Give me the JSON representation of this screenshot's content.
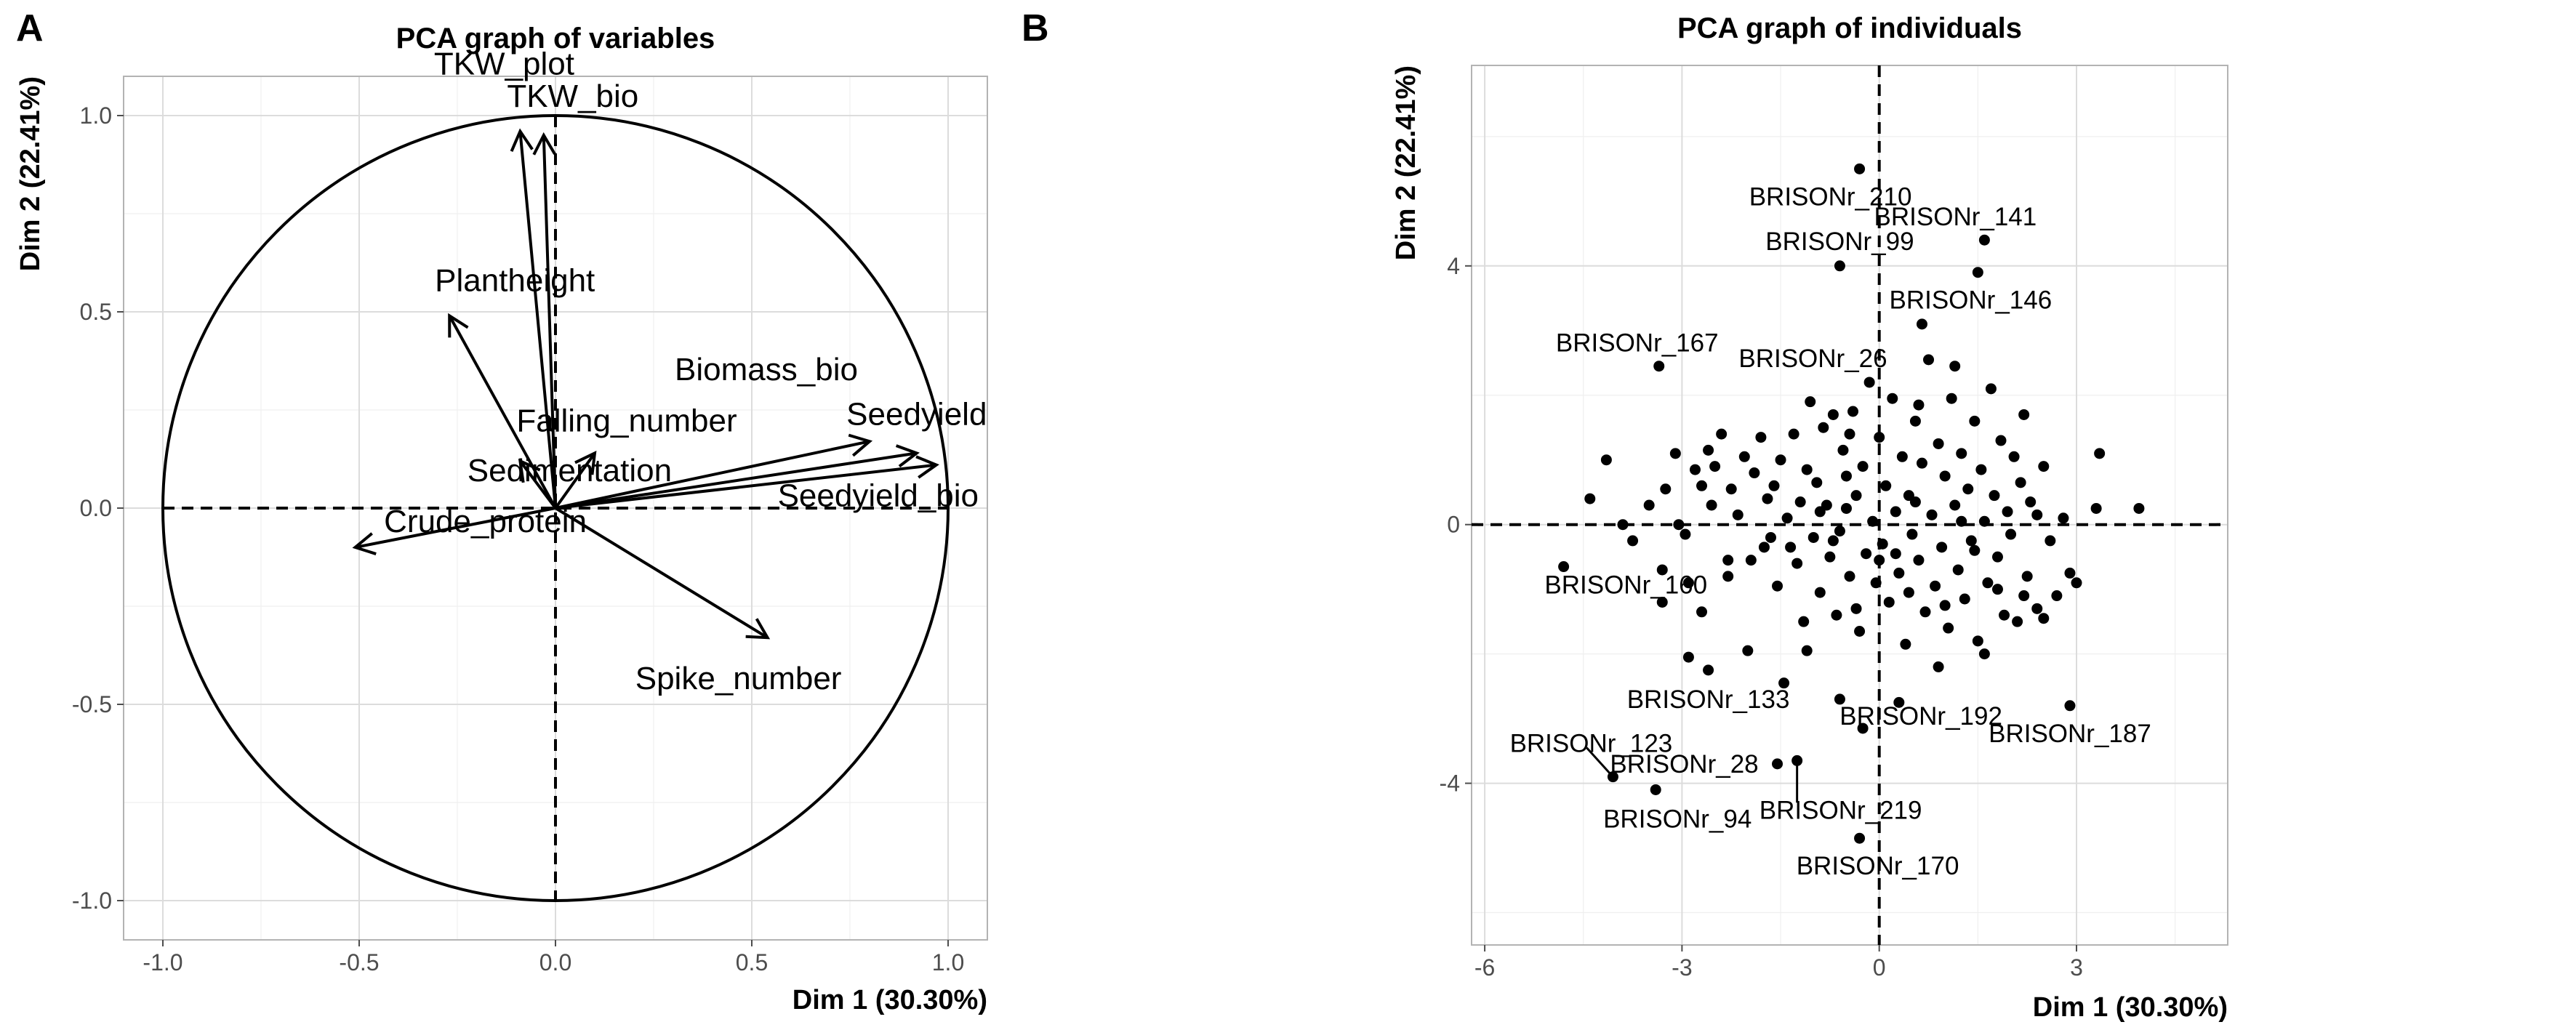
{
  "chart_data": [
    {
      "panel": "A",
      "type": "scatter",
      "title": "PCA graph of variables",
      "xlabel": "Dim 1 (30.30%)",
      "ylabel": "Dim 2 (22.41%)",
      "xlim": [
        -1.1,
        1.1
      ],
      "ylim": [
        -1.1,
        1.1
      ],
      "x_ticks": [
        -1.0,
        -0.5,
        0.0,
        0.5,
        1.0
      ],
      "y_ticks": [
        -1.0,
        -0.5,
        0.0,
        0.5,
        1.0
      ],
      "x_tick_labels": [
        "-1.0",
        "-0.5",
        "0.0",
        "0.5",
        "1.0"
      ],
      "y_tick_labels": [
        "-1.0",
        "-0.5",
        "0.0",
        "0.5",
        "1.0"
      ],
      "correlation_circle": true,
      "grid": true,
      "variables": [
        {
          "name": "TKW_plot",
          "x": -0.09,
          "y": 0.96
        },
        {
          "name": "TKW_bio",
          "x": -0.03,
          "y": 0.95
        },
        {
          "name": "Plantheight",
          "x": -0.27,
          "y": 0.49
        },
        {
          "name": "Biomass_bio",
          "x": 0.8,
          "y": 0.17
        },
        {
          "name": "Seedyield",
          "x": 0.92,
          "y": 0.14
        },
        {
          "name": "Falling_number",
          "x": 0.1,
          "y": 0.14
        },
        {
          "name": "Sedimentation",
          "x": -0.09,
          "y": 0.12
        },
        {
          "name": "Seedyield_bio",
          "x": 0.97,
          "y": 0.11
        },
        {
          "name": "Crude_protein",
          "x": -0.51,
          "y": -0.1
        },
        {
          "name": "Spike_number",
          "x": 0.54,
          "y": -0.33
        }
      ]
    },
    {
      "panel": "B",
      "type": "scatter",
      "title": "PCA graph of individuals",
      "xlabel": "Dim 1 (30.30%)",
      "ylabel": "Dim 2 (22.41%)",
      "xlim": [
        -6.2,
        5.3
      ],
      "ylim": [
        -6.5,
        7.1
      ],
      "x_ticks": [
        -6,
        -3,
        0,
        3
      ],
      "y_ticks": [
        -4,
        0,
        4
      ],
      "x_tick_labels": [
        "-6",
        "-3",
        "0",
        "3"
      ],
      "y_tick_labels": [
        "-4",
        "0",
        "4"
      ],
      "grid": true,
      "labeled_points": [
        {
          "name": "BRISONr_210",
          "x": -0.3,
          "y": 5.5
        },
        {
          "name": "BRISONr_141",
          "x": 1.6,
          "y": 4.4
        },
        {
          "name": "BRISONr_99",
          "x": -0.6,
          "y": 4.0
        },
        {
          "name": "BRISONr_146",
          "x": 1.5,
          "y": 3.9
        },
        {
          "name": "BRISONr_26",
          "x": 0.65,
          "y": 3.1
        },
        {
          "name": "BRISONr_167",
          "x": -3.35,
          "y": 2.45
        },
        {
          "name": "BRISONr_160",
          "x": -3.3,
          "y": -1.2
        },
        {
          "name": "BRISONr_133",
          "x": -2.6,
          "y": -2.25
        },
        {
          "name": "BRISONr_187",
          "x": 2.9,
          "y": -2.8
        },
        {
          "name": "BRISONr_123",
          "x": -4.05,
          "y": -3.9
        },
        {
          "name": "BRISONr_28",
          "x": -1.55,
          "y": -3.7
        },
        {
          "name": "BRISONr_192",
          "x": -0.25,
          "y": -3.15
        },
        {
          "name": "BRISONr_94",
          "x": -3.4,
          "y": -4.1
        },
        {
          "name": "BRISONr_219",
          "x": -1.25,
          "y": -3.65
        },
        {
          "name": "BRISONr_170",
          "x": -0.3,
          "y": -4.85
        }
      ],
      "points": [
        [
          -4.8,
          -0.65
        ],
        [
          -4.4,
          0.4
        ],
        [
          -4.15,
          1.0
        ],
        [
          -3.9,
          0.0
        ],
        [
          -3.75,
          -0.25
        ],
        [
          -3.5,
          0.3
        ],
        [
          -3.25,
          0.55
        ],
        [
          -3.1,
          1.1
        ],
        [
          -3.05,
          0.0
        ],
        [
          -2.95,
          -0.15
        ],
        [
          -2.8,
          0.85
        ],
        [
          -2.7,
          -1.35
        ],
        [
          -2.6,
          1.15
        ],
        [
          -2.55,
          0.3
        ],
        [
          -2.5,
          0.9
        ],
        [
          -2.4,
          1.4
        ],
        [
          -2.3,
          -0.8
        ],
        [
          -2.25,
          0.55
        ],
        [
          -2.15,
          0.15
        ],
        [
          -2.05,
          1.05
        ],
        [
          -2.0,
          -1.95
        ],
        [
          -1.9,
          0.8
        ],
        [
          -1.8,
          1.35
        ],
        [
          -1.75,
          -0.35
        ],
        [
          -1.7,
          0.4
        ],
        [
          -1.6,
          0.6
        ],
        [
          -1.55,
          -0.95
        ],
        [
          -1.5,
          1.0
        ],
        [
          -1.45,
          -2.45
        ],
        [
          -1.4,
          0.1
        ],
        [
          -1.3,
          1.4
        ],
        [
          -1.25,
          -0.6
        ],
        [
          -1.2,
          0.35
        ],
        [
          -1.15,
          -1.5
        ],
        [
          -1.1,
          0.85
        ],
        [
          -1.05,
          1.9
        ],
        [
          -1.0,
          -0.2
        ],
        [
          -0.95,
          0.65
        ],
        [
          -0.9,
          -1.05
        ],
        [
          -0.85,
          1.5
        ],
        [
          -0.8,
          0.3
        ],
        [
          -0.75,
          -0.5
        ],
        [
          -0.7,
          1.7
        ],
        [
          -0.65,
          -1.4
        ],
        [
          -0.6,
          -0.1
        ],
        [
          -0.55,
          1.15
        ],
        [
          -0.5,
          0.25
        ],
        [
          -0.45,
          -0.8
        ],
        [
          -0.4,
          1.75
        ],
        [
          -0.35,
          0.45
        ],
        [
          -0.3,
          -1.65
        ],
        [
          -0.25,
          0.9
        ],
        [
          -0.2,
          -0.45
        ],
        [
          -0.15,
          2.2
        ],
        [
          -0.1,
          0.05
        ],
        [
          -0.05,
          -0.9
        ],
        [
          0.0,
          1.35
        ],
        [
          0.05,
          -0.3
        ],
        [
          0.1,
          0.6
        ],
        [
          0.15,
          -1.2
        ],
        [
          0.2,
          1.95
        ],
        [
          0.25,
          0.2
        ],
        [
          0.3,
          -0.75
        ],
        [
          0.35,
          1.05
        ],
        [
          0.4,
          -1.85
        ],
        [
          0.45,
          0.45
        ],
        [
          0.5,
          -0.15
        ],
        [
          0.55,
          1.6
        ],
        [
          0.6,
          -0.55
        ],
        [
          0.65,
          0.95
        ],
        [
          0.7,
          -1.35
        ],
        [
          0.75,
          2.55
        ],
        [
          0.8,
          0.15
        ],
        [
          0.85,
          -0.95
        ],
        [
          0.9,
          1.25
        ],
        [
          0.95,
          -0.35
        ],
        [
          1.0,
          0.75
        ],
        [
          1.05,
          -1.6
        ],
        [
          1.1,
          1.95
        ],
        [
          1.15,
          0.3
        ],
        [
          1.2,
          -0.7
        ],
        [
          1.25,
          1.1
        ],
        [
          1.3,
          -1.15
        ],
        [
          1.35,
          0.55
        ],
        [
          1.4,
          -0.25
        ],
        [
          1.45,
          1.6
        ],
        [
          1.5,
          -1.8
        ],
        [
          1.55,
          0.85
        ],
        [
          1.6,
          0.05
        ],
        [
          1.65,
          -0.9
        ],
        [
          1.7,
          2.1
        ],
        [
          1.75,
          0.45
        ],
        [
          1.8,
          -0.5
        ],
        [
          1.85,
          1.3
        ],
        [
          1.9,
          -1.4
        ],
        [
          1.95,
          0.2
        ],
        [
          2.0,
          -0.15
        ],
        [
          2.05,
          1.05
        ],
        [
          2.1,
          -1.5
        ],
        [
          2.15,
          0.65
        ],
        [
          2.2,
          1.7
        ],
        [
          2.25,
          -0.8
        ],
        [
          2.3,
          0.35
        ],
        [
          2.4,
          -1.3
        ],
        [
          2.5,
          0.9
        ],
        [
          2.6,
          -0.25
        ],
        [
          2.7,
          -1.1
        ],
        [
          2.8,
          0.1
        ],
        [
          2.9,
          -0.75
        ],
        [
          3.0,
          -0.9
        ],
        [
          3.3,
          0.25
        ],
        [
          3.35,
          1.1
        ],
        [
          3.95,
          0.25
        ],
        [
          -3.3,
          -0.7
        ],
        [
          -2.9,
          -0.9
        ],
        [
          -1.95,
          -0.55
        ],
        [
          -0.35,
          -1.3
        ],
        [
          0.45,
          -1.05
        ],
        [
          1.0,
          -1.25
        ],
        [
          1.8,
          -1.0
        ],
        [
          2.2,
          -1.1
        ],
        [
          -2.7,
          0.6
        ],
        [
          -1.35,
          -0.35
        ],
        [
          0.0,
          -0.55
        ],
        [
          -0.7,
          -0.25
        ],
        [
          0.55,
          0.35
        ],
        [
          1.25,
          0.05
        ],
        [
          -1.65,
          -0.2
        ],
        [
          -2.3,
          -0.55
        ],
        [
          -0.9,
          0.2
        ],
        [
          0.25,
          -0.45
        ],
        [
          -0.45,
          1.4
        ],
        [
          2.4,
          0.15
        ],
        [
          1.45,
          -0.4
        ],
        [
          -1.1,
          -1.95
        ],
        [
          0.9,
          -2.2
        ],
        [
          -0.6,
          -2.7
        ],
        [
          0.3,
          -2.75
        ],
        [
          -2.9,
          -2.05
        ],
        [
          2.5,
          -1.45
        ],
        [
          1.6,
          -2.0
        ],
        [
          -0.5,
          0.75
        ],
        [
          0.6,
          1.85
        ],
        [
          1.15,
          2.45
        ]
      ]
    }
  ]
}
